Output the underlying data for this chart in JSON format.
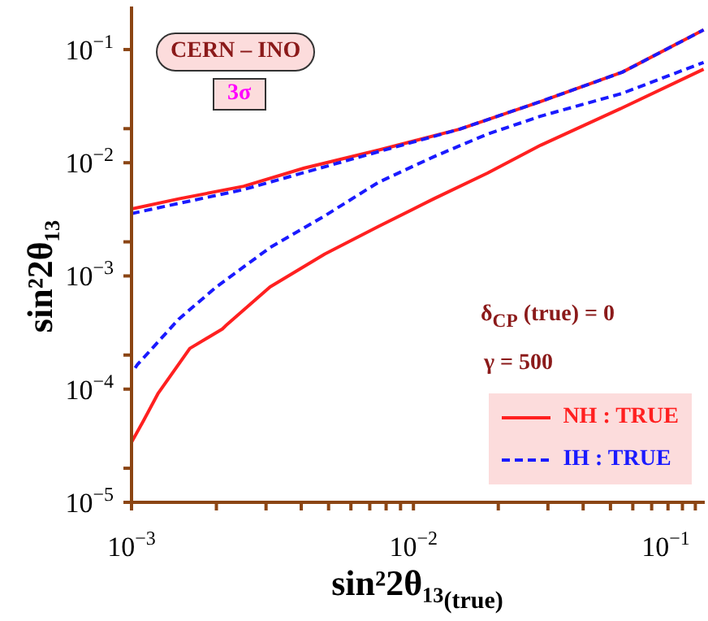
{
  "chart_data": {
    "type": "line",
    "xlabel": "sin²2θ₁₃$_{(true)}$",
    "ylabel": "sin²2θ₁₃",
    "log": "xy",
    "xlim": [
      0.001,
      0.108
    ],
    "ylim": [
      1e-05,
      0.24
    ],
    "xticks": [
      {
        "value": 0.001,
        "label": "10$^{−3}$"
      },
      {
        "value": 0.002,
        "label": null
      },
      {
        "value": 0.003,
        "label": null
      },
      {
        "value": 0.004,
        "label": null
      },
      {
        "value": 0.005,
        "label": null
      },
      {
        "value": 0.006,
        "label": null
      },
      {
        "value": 0.007,
        "label": null
      },
      {
        "value": 0.008,
        "label": null
      },
      {
        "value": 0.009,
        "label": null
      },
      {
        "value": 0.01,
        "label": "10$^{−2}$"
      },
      {
        "value": 0.02,
        "label": null
      },
      {
        "value": 0.03,
        "label": null
      },
      {
        "value": 0.04,
        "label": null
      },
      {
        "value": 0.05,
        "label": null
      },
      {
        "value": 0.06,
        "label": null
      },
      {
        "value": 0.07,
        "label": null
      },
      {
        "value": 0.08,
        "label": null
      },
      {
        "value": 0.09,
        "label": null
      },
      {
        "value": 0.1,
        "label": "10$^{−1}$"
      }
    ],
    "yticks": [
      {
        "value": 1e-05,
        "label": "10$^{−5}$"
      },
      {
        "value": 2e-05,
        "label": null
      },
      {
        "value": 0.0001,
        "label": "10$^{−4}$"
      },
      {
        "value": 0.0002,
        "label": null
      },
      {
        "value": 0.001,
        "label": "10$^{−3}$"
      },
      {
        "value": 0.002,
        "label": null
      },
      {
        "value": 0.01,
        "label": "10$^{−2}$"
      },
      {
        "value": 0.02,
        "label": null
      },
      {
        "value": 0.1,
        "label": "10$^{−1}$"
      }
    ],
    "legend": "bottom right",
    "series": [
      {
        "name": "NH : TRUE",
        "color": "#ff2020",
        "line_style": "solid",
        "x": [
          0.001,
          0.00147,
          0.0025,
          0.0041,
          0.0075,
          0.0146,
          0.0283,
          0.055,
          0.107
        ],
        "values": [
          0.0039,
          0.0048,
          0.0062,
          0.00897,
          0.0129,
          0.0198,
          0.0348,
          0.063,
          0.149
        ]
      },
      {
        "name": "IH : TRUE",
        "color": "#1a1aff",
        "line_style": "dashed",
        "x": [
          0.001,
          0.0025,
          0.0075,
          0.0146,
          0.0283,
          0.055,
          0.107
        ],
        "values": [
          0.00356,
          0.0058,
          0.0125,
          0.0198,
          0.0348,
          0.063,
          0.149
        ]
      },
      {
        "color": "#1a1aff",
        "line_style": "dashed",
        "x": [
          0.00103,
          0.00105,
          0.00147,
          0.002,
          0.0031,
          0.00485,
          0.0075,
          0.0118,
          0.0183,
          0.0283,
          0.055,
          0.107
        ],
        "values": [
          0.000154,
          0.000165,
          0.000415,
          0.0008,
          0.00178,
          0.0034,
          0.0067,
          0.0113,
          0.0179,
          0.0258,
          0.041,
          0.077
        ]
      },
      {
        "color": "#ff2020",
        "line_style": "solid",
        "x": [
          0.001,
          0.0011,
          0.00124,
          0.00161,
          0.0021,
          0.00219,
          0.0031,
          0.00485,
          0.0075,
          0.0118,
          0.0183,
          0.0283,
          0.055,
          0.107
        ],
        "values": [
          3.4e-05,
          5.2e-05,
          9.1e-05,
          0.000229,
          0.00034,
          0.000376,
          0.0008,
          0.00156,
          0.00273,
          0.0048,
          0.0081,
          0.0143,
          0.0305,
          0.067
        ]
      }
    ],
    "annotations": [
      "CERN – INO",
      "3σ",
      "δ$_{CP}$ (true)  = 0",
      "γ = 500"
    ]
  }
}
